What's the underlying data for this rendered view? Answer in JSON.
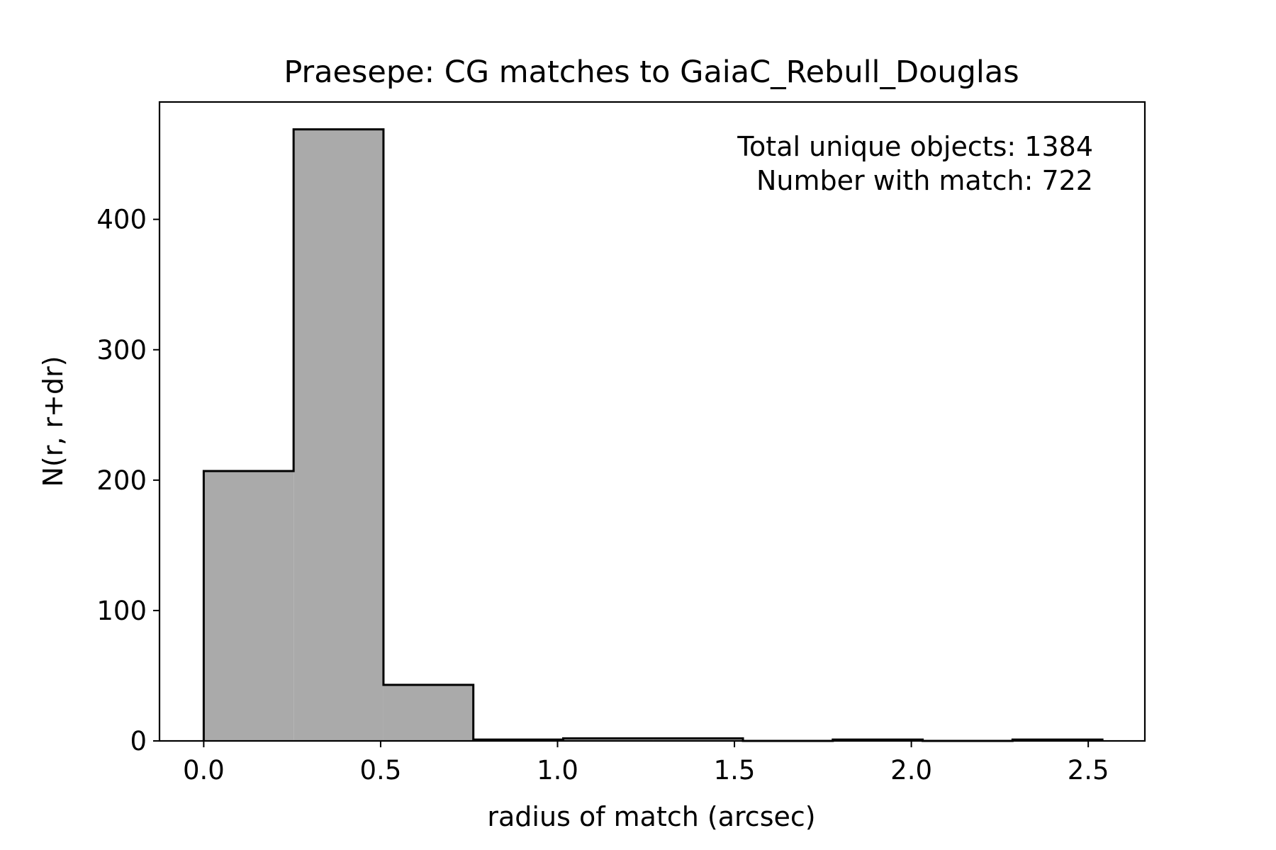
{
  "chart_data": {
    "type": "bar",
    "title": "Praesepe: CG matches to GaiaC_Rebull_Douglas",
    "xlabel": "radius of match (arcsec)",
    "ylabel": "N(r, r+dr)",
    "xlim": [
      -0.125,
      2.66
    ],
    "ylim": [
      0,
      490
    ],
    "grid": false,
    "legend": "none",
    "bar_color": "#aaaaaa",
    "edge_color": "#000000",
    "bin_edges": [
      0.0,
      0.254,
      0.508,
      0.762,
      1.016,
      1.27,
      1.524,
      1.778,
      2.032,
      2.286,
      2.54
    ],
    "values": [
      207,
      469,
      43,
      1,
      2,
      2,
      0,
      1,
      0,
      1
    ],
    "x_ticks": [
      {
        "value": 0.0,
        "label": "0.0"
      },
      {
        "value": 0.5,
        "label": "0.5"
      },
      {
        "value": 1.0,
        "label": "1.0"
      },
      {
        "value": 1.5,
        "label": "1.5"
      },
      {
        "value": 2.0,
        "label": "2.0"
      },
      {
        "value": 2.5,
        "label": "2.5"
      }
    ],
    "y_ticks": [
      {
        "value": 0,
        "label": "0"
      },
      {
        "value": 100,
        "label": "100"
      },
      {
        "value": 200,
        "label": "200"
      },
      {
        "value": 300,
        "label": "300"
      },
      {
        "value": 400,
        "label": "400"
      }
    ],
    "annotations": [
      "Total unique objects: 1384",
      "Number with match: 722"
    ]
  }
}
